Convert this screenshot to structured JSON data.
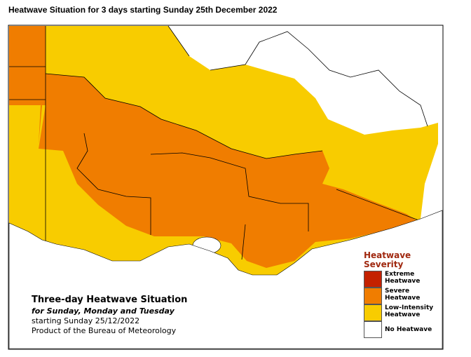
{
  "header": {
    "title": "Heatwave Situation for 3 days starting Sunday 25th December 2022"
  },
  "map": {
    "caption": {
      "title": "Three-day Heatwave Situation",
      "subtitle": "for Sunday, Monday and Tuesday",
      "date": "starting Sunday 25/12/2022",
      "source": "Product of the Bureau of Meteorology"
    },
    "legend": {
      "title": "Heatwave Severity",
      "items": [
        {
          "label": "Extreme Heatwave",
          "color": "#c42100"
        },
        {
          "label": "Severe Heatwave",
          "color": "#f07d00"
        },
        {
          "label": "Low-Intensity Heatwave",
          "color": "#f8cc00"
        },
        {
          "label": "No Heatwave",
          "color": "#ffffff"
        }
      ]
    }
  }
}
